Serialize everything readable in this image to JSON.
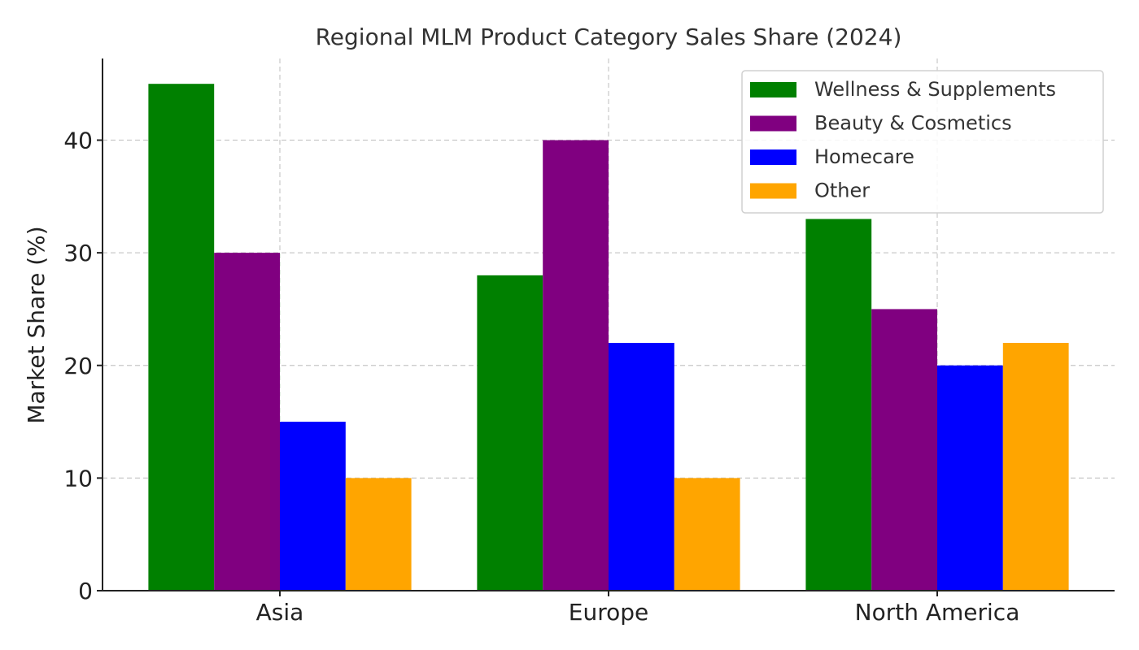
{
  "chart_data": {
    "type": "bar",
    "title": "Regional MLM Product Category Sales Share (2024)",
    "xlabel": "",
    "ylabel": "Market Share (%)",
    "categories": [
      "Asia",
      "Europe",
      "North America"
    ],
    "series": [
      {
        "name": "Wellness & Supplements",
        "color": "#008000",
        "values": [
          45,
          28,
          33
        ]
      },
      {
        "name": "Beauty & Cosmetics",
        "color": "#800080",
        "values": [
          30,
          40,
          25
        ]
      },
      {
        "name": "Homecare",
        "color": "#0000ff",
        "values": [
          15,
          22,
          20
        ]
      },
      {
        "name": "Other",
        "color": "#ffa500",
        "values": [
          10,
          10,
          22
        ]
      }
    ],
    "ylim": [
      0,
      47.25
    ],
    "yticks": [
      0,
      10,
      20,
      30,
      40
    ],
    "grid": true,
    "legend_position": "top-right"
  }
}
